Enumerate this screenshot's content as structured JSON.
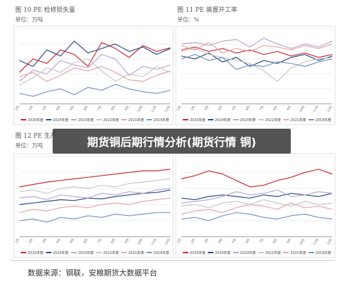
{
  "overlay": {
    "banner": "期货铜后期行情分析(期货行情 铜)"
  },
  "source": "数据来源：钢联，安粮期货大数据平台",
  "colors": {
    "2020": "#c82a35",
    "2024": "#2b4a86",
    "2023": "#b9a6cc",
    "2022": "#c8c8c8",
    "2021": "#e3a4ab",
    "2019": "#7696c0"
  },
  "chart_data": [
    {
      "title": "图 10 PE 检修损失量",
      "unit": "单位：万吨",
      "type": "line",
      "x": [
        "1月",
        "2月",
        "3月",
        "4月",
        "5月",
        "6月",
        "7月",
        "8月",
        "9月",
        "10月",
        "11月",
        "12月"
      ],
      "ylim": [
        0,
        100
      ],
      "series": [
        {
          "name": "2020年度",
          "values": [
            42,
            60,
            54,
            72,
            66,
            50,
            82,
            74,
            62,
            78,
            70,
            75
          ]
        },
        {
          "name": "2024年度",
          "values": [
            58,
            50,
            72,
            64,
            84,
            68,
            74,
            80,
            70,
            76,
            66,
            74
          ]
        },
        {
          "name": "2023年度",
          "values": [
            30,
            45,
            40,
            58,
            52,
            48,
            66,
            60,
            38,
            50,
            46,
            52
          ]
        },
        {
          "name": "2022年度",
          "values": [
            25,
            35,
            48,
            42,
            55,
            60,
            44,
            30,
            40,
            36,
            50,
            42
          ]
        },
        {
          "name": "2021年度",
          "values": [
            36,
            42,
            30,
            38,
            48,
            44,
            50,
            42,
            32,
            30,
            38,
            44
          ]
        },
        {
          "name": "2019年度",
          "values": [
            14,
            10,
            16,
            20,
            12,
            22,
            18,
            26,
            20,
            16,
            14,
            18
          ]
        }
      ]
    },
    {
      "title": "图 11 PE 装置开工率",
      "unit": "单位：%",
      "type": "line",
      "x": [
        "1月",
        "2月",
        "3月",
        "4月",
        "5月",
        "6月",
        "7月",
        "8月",
        "9月",
        "10月",
        "11月",
        "12月"
      ],
      "ylim": [
        0,
        100
      ],
      "series": [
        {
          "name": "2020年度",
          "values": [
            72,
            76,
            70,
            74,
            68,
            72,
            66,
            70,
            64,
            68,
            62,
            66
          ]
        },
        {
          "name": "2024年度",
          "values": [
            64,
            60,
            68,
            56,
            62,
            50,
            58,
            54,
            62,
            66,
            58,
            64
          ]
        },
        {
          "name": "2023年度",
          "values": [
            80,
            82,
            78,
            84,
            86,
            76,
            88,
            80,
            74,
            80,
            76,
            84
          ]
        },
        {
          "name": "2022年度",
          "values": [
            70,
            74,
            66,
            62,
            58,
            54,
            44,
            30,
            48,
            56,
            60,
            62
          ]
        },
        {
          "name": "2021年度",
          "values": [
            78,
            72,
            82,
            68,
            74,
            70,
            78,
            76,
            72,
            78,
            74,
            80
          ]
        },
        {
          "name": "2019年度",
          "values": [
            60,
            66,
            58,
            62,
            46,
            52,
            50,
            56,
            54,
            50,
            56,
            60
          ]
        }
      ]
    },
    {
      "title": "图 12 PE 生产",
      "unit": "单位：万吨",
      "type": "line",
      "x": [
        "1月",
        "2月",
        "3月",
        "4月",
        "5月",
        "6月",
        "7月",
        "8月",
        "9月",
        "10月",
        "11月",
        "12月"
      ],
      "ylim": [
        0,
        100
      ],
      "series": [
        {
          "name": "2020年度",
          "values": [
            62,
            65,
            68,
            70,
            72,
            74,
            76,
            78,
            80,
            82,
            82,
            84
          ]
        },
        {
          "name": "2024年度",
          "values": [
            40,
            42,
            44,
            46,
            45,
            48,
            47,
            50,
            52,
            54,
            55,
            58
          ]
        },
        {
          "name": "2023年度",
          "values": [
            48,
            50,
            46,
            52,
            50,
            48,
            54,
            52,
            56,
            54,
            58,
            60
          ]
        },
        {
          "name": "2022年度",
          "values": [
            56,
            58,
            54,
            60,
            62,
            60,
            64,
            62,
            66,
            68,
            70,
            72
          ]
        },
        {
          "name": "2021年度",
          "values": [
            30,
            34,
            32,
            36,
            38,
            36,
            40,
            42,
            40,
            44,
            46,
            48
          ]
        },
        {
          "name": "2019年度",
          "values": [
            20,
            22,
            18,
            24,
            22,
            26,
            24,
            28,
            26,
            28,
            30,
            30
          ]
        }
      ]
    },
    {
      "title": "",
      "unit": "",
      "type": "line",
      "x": [
        "1月",
        "2月",
        "3月",
        "4月",
        "5月",
        "6月",
        "7月",
        "8月",
        "9月",
        "10月",
        "11月",
        "12月"
      ],
      "ylim": [
        0,
        100
      ],
      "series": [
        {
          "name": "2020年度",
          "values": [
            72,
            76,
            82,
            78,
            70,
            62,
            64,
            70,
            74,
            80,
            84,
            78
          ]
        },
        {
          "name": "2024年度",
          "values": [
            48,
            46,
            50,
            52,
            50,
            48,
            52,
            50,
            54,
            52,
            50,
            54
          ]
        },
        {
          "name": "2023年度",
          "values": [
            42,
            44,
            46,
            50,
            56,
            52,
            54,
            58,
            50,
            52,
            56,
            54
          ]
        },
        {
          "name": "2022年度",
          "values": [
            38,
            40,
            36,
            42,
            44,
            40,
            46,
            42,
            38,
            44,
            40,
            42
          ]
        },
        {
          "name": "2021年度",
          "values": [
            28,
            32,
            34,
            30,
            36,
            40,
            38,
            34,
            42,
            36,
            38,
            34
          ]
        },
        {
          "name": "2019年度",
          "values": [
            22,
            24,
            20,
            26,
            30,
            28,
            24,
            22,
            26,
            28,
            24,
            22
          ]
        }
      ]
    }
  ]
}
